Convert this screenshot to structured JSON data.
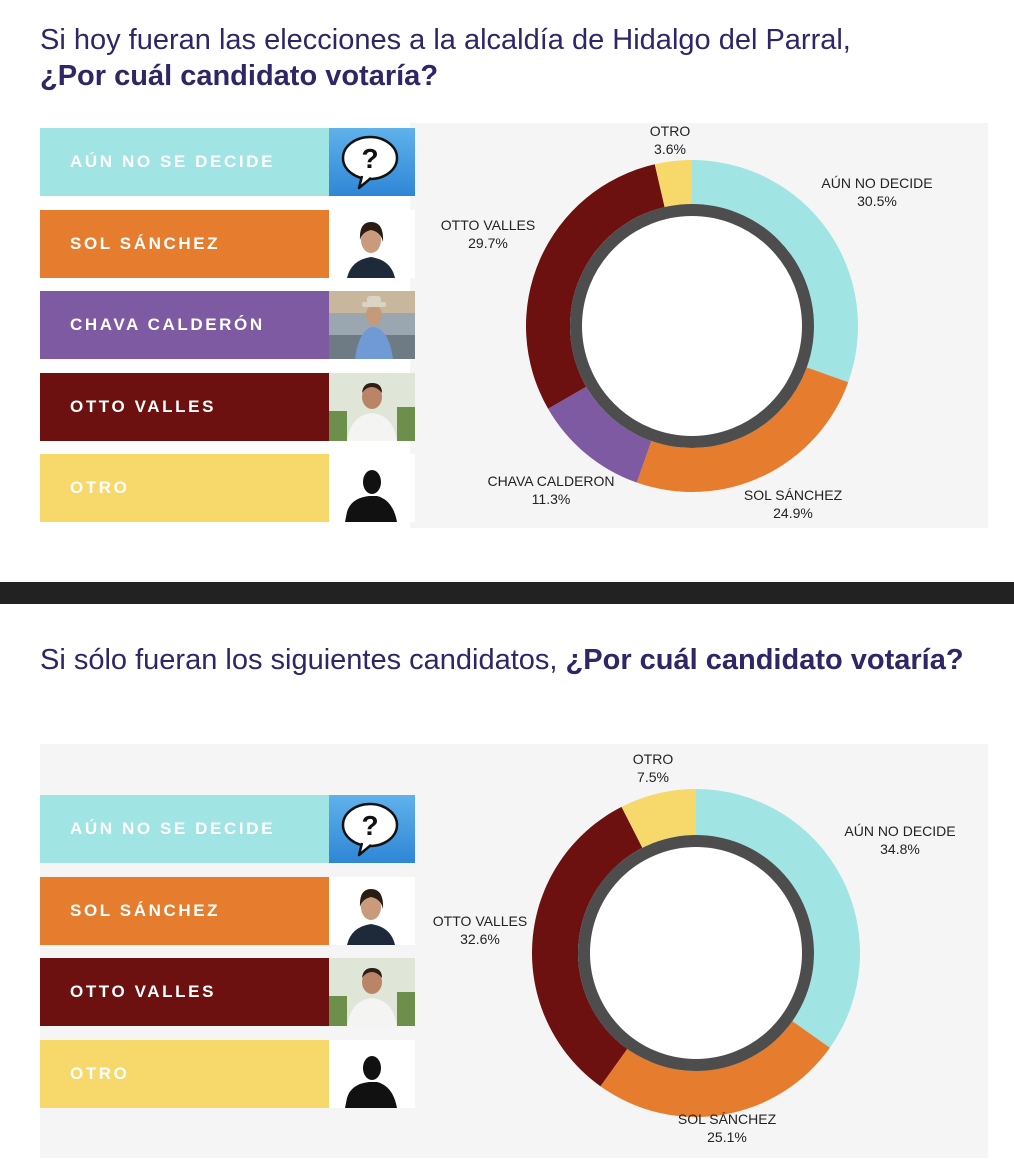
{
  "colors": {
    "aun": "#a0e4e4",
    "sol": "#e67c2e",
    "chava": "#7e5aa2",
    "otto": "#6d1010",
    "otro": "#f7d86a",
    "title": "#2e2666",
    "inner_ring": "#4d4d4d"
  },
  "sections": [
    {
      "title_plain": "Si hoy fueran las elecciones a la alcaldía de Hidalgo del Parral,",
      "title_bold": "¿Por cuál candidato votaría?",
      "legend": [
        {
          "label": "AÚN NO SE DECIDE",
          "icon": "question-bubble-icon",
          "color_key": "aun",
          "text_color": "#ffffff"
        },
        {
          "label": "SOL SÁNCHEZ",
          "icon": "candidate-photo-woman",
          "color_key": "sol",
          "text_color": "#ffffff"
        },
        {
          "label": "CHAVA CALDERÓN",
          "icon": "candidate-photo-man-hat",
          "color_key": "chava",
          "text_color": "#ffffff"
        },
        {
          "label": "OTTO VALLES",
          "icon": "candidate-photo-man",
          "color_key": "otto",
          "text_color": "#ffffff"
        },
        {
          "label": "OTRO",
          "icon": "silhouette-icon",
          "color_key": "otro",
          "text_color": "#ffffff"
        }
      ]
    },
    {
      "title_plain": "Si sólo fueran los siguientes candidatos,",
      "title_bold": "¿Por cuál candidato votaría?",
      "legend": [
        {
          "label": "AÚN NO SE DECIDE",
          "icon": "question-bubble-icon",
          "color_key": "aun",
          "text_color": "#ffffff"
        },
        {
          "label": "SOL SÁNCHEZ",
          "icon": "candidate-photo-woman",
          "color_key": "sol",
          "text_color": "#ffffff"
        },
        {
          "label": "OTTO VALLES",
          "icon": "candidate-photo-man",
          "color_key": "otto",
          "text_color": "#ffffff"
        },
        {
          "label": "OTRO",
          "icon": "silhouette-icon",
          "color_key": "otro",
          "text_color": "#ffffff"
        }
      ]
    }
  ],
  "chart_data": [
    {
      "type": "pie",
      "style": "donut",
      "series": [
        {
          "name": "AÚN NO DECIDE",
          "value": 30.5,
          "label": "30.5%",
          "color_key": "aun"
        },
        {
          "name": "SOL SÁNCHEZ",
          "value": 24.9,
          "label": "24.9%",
          "color_key": "sol"
        },
        {
          "name": "CHAVA CALDERON",
          "value": 11.3,
          "label": "11.3%",
          "color_key": "chava"
        },
        {
          "name": "OTTO VALLES",
          "value": 29.7,
          "label": "29.7%",
          "color_key": "otto"
        },
        {
          "name": "OTRO",
          "value": 3.6,
          "label": "3.6%",
          "color_key": "otro"
        }
      ]
    },
    {
      "type": "pie",
      "style": "donut",
      "series": [
        {
          "name": "AÚN NO DECIDE",
          "value": 34.8,
          "label": "34.8%",
          "color_key": "aun"
        },
        {
          "name": "SOL SÁNCHEZ",
          "value": 25.1,
          "label": "25.1%",
          "color_key": "sol"
        },
        {
          "name": "OTTO VALLES",
          "value": 32.6,
          "label": "32.6%",
          "color_key": "otto"
        },
        {
          "name": "OTRO",
          "value": 7.5,
          "label": "7.5%",
          "color_key": "otro"
        }
      ]
    }
  ]
}
